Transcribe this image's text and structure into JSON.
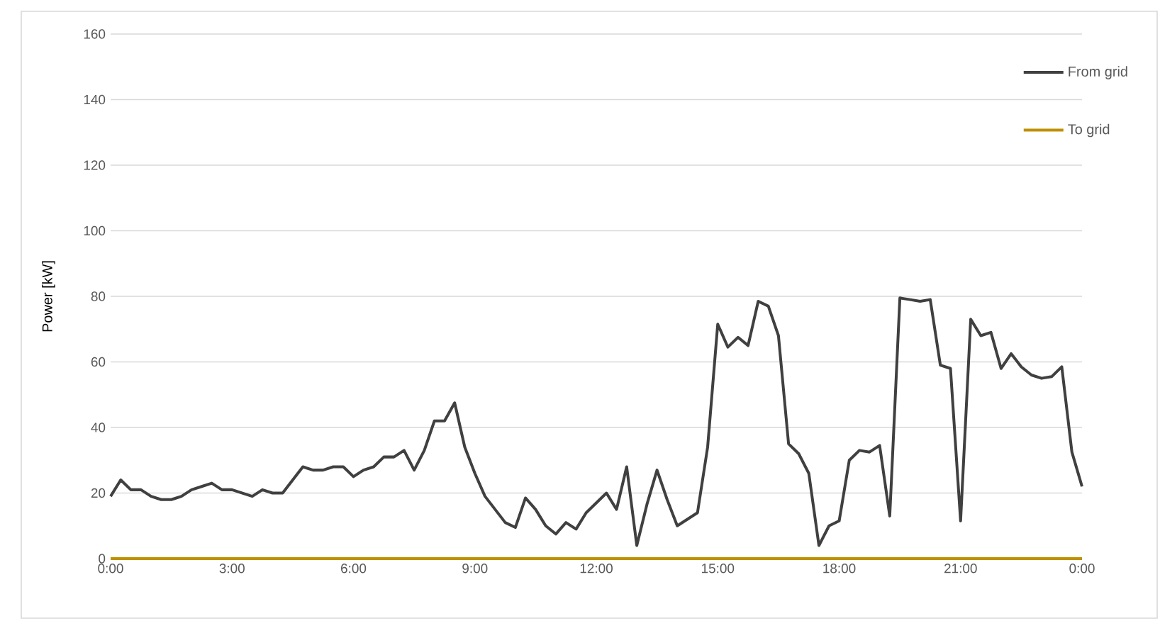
{
  "chart_data": {
    "type": "line",
    "ylabel": "Power [kW]",
    "xlim": [
      0,
      24
    ],
    "ylim": [
      0,
      160
    ],
    "xticks": [
      {
        "value": 0,
        "label": "0:00"
      },
      {
        "value": 3,
        "label": "3:00"
      },
      {
        "value": 6,
        "label": "6:00"
      },
      {
        "value": 9,
        "label": "9:00"
      },
      {
        "value": 12,
        "label": "12:00"
      },
      {
        "value": 15,
        "label": "15:00"
      },
      {
        "value": 18,
        "label": "18:00"
      },
      {
        "value": 21,
        "label": "21:00"
      },
      {
        "value": 24,
        "label": "0:00"
      }
    ],
    "yticks": [
      0,
      20,
      40,
      60,
      80,
      100,
      120,
      140,
      160
    ],
    "grid": "y",
    "legend": "top right",
    "series": [
      {
        "name": "From grid",
        "color": "#404040",
        "x": [
          0,
          0.25,
          0.5,
          0.75,
          1,
          1.25,
          1.5,
          1.75,
          2,
          2.25,
          2.5,
          2.75,
          3,
          3.25,
          3.5,
          3.75,
          4,
          4.25,
          4.5,
          4.75,
          5,
          5.25,
          5.5,
          5.75,
          6,
          6.25,
          6.5,
          6.75,
          7,
          7.25,
          7.5,
          7.75,
          8,
          8.25,
          8.5,
          8.75,
          9,
          9.25,
          9.5,
          9.75,
          10,
          10.25,
          10.5,
          10.75,
          11,
          11.25,
          11.5,
          11.75,
          12,
          12.25,
          12.5,
          12.75,
          13,
          13.25,
          13.5,
          13.75,
          14,
          14.25,
          14.5,
          14.75,
          15,
          15.25,
          15.5,
          15.75,
          16,
          16.25,
          16.5,
          16.75,
          17,
          17.25,
          17.5,
          17.75,
          18,
          18.25,
          18.5,
          18.75,
          19,
          19.25,
          19.5,
          19.75,
          20,
          20.25,
          20.5,
          20.75,
          21,
          21.25,
          21.5,
          21.75,
          22,
          22.25,
          22.5,
          22.75,
          23,
          23.25,
          23.5,
          23.75,
          24
        ],
        "values": [
          19,
          24,
          21,
          21,
          19,
          18,
          18,
          19,
          21,
          22,
          23,
          21,
          21,
          20,
          19,
          21,
          20,
          20,
          24,
          28,
          27,
          27,
          28,
          28,
          25,
          27,
          28,
          31,
          31,
          33,
          27,
          33,
          42,
          42,
          47.5,
          34,
          26,
          19,
          15,
          11,
          9.5,
          18.5,
          15,
          10,
          7.5,
          11,
          9,
          14,
          17,
          20,
          15,
          28,
          4,
          16.5,
          27,
          18,
          10,
          12,
          14,
          34,
          71.5,
          64.5,
          67.5,
          65,
          78.5,
          77,
          68,
          35,
          32,
          26,
          4,
          10,
          11.5,
          30,
          33,
          32.5,
          34.5,
          13,
          79.5,
          79,
          78.5,
          79,
          59,
          58,
          11.5,
          73,
          68,
          69,
          58,
          62.5,
          58.5,
          56,
          55,
          55.5,
          58.5,
          32.5,
          22
        ]
      },
      {
        "name": "To grid",
        "color": "#bf9000",
        "x": [
          0,
          24
        ],
        "values": [
          0,
          0
        ]
      }
    ]
  }
}
